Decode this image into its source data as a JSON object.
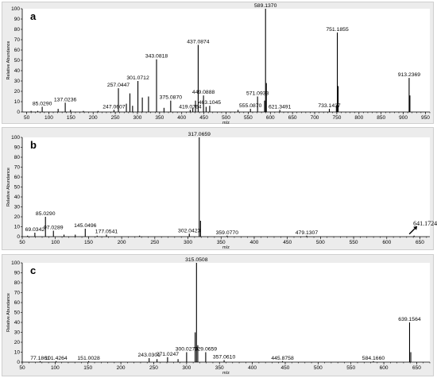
{
  "chart_data": [
    {
      "type": "bar",
      "panel_label": "a",
      "xlabel": "m/z",
      "ylabel": "Relative Abundance",
      "xlim": [
        40,
        960
      ],
      "ylim": [
        0,
        100
      ],
      "xticks": [
        50,
        100,
        150,
        200,
        250,
        300,
        350,
        400,
        450,
        500,
        550,
        600,
        650,
        700,
        750,
        800,
        850,
        900,
        950
      ],
      "yticks": [
        0,
        10,
        20,
        30,
        40,
        50,
        60,
        70,
        80,
        90,
        100
      ],
      "peaks": [
        {
          "x": 60,
          "y": 1,
          "label": ""
        },
        {
          "x": 75,
          "y": 1,
          "label": ""
        },
        {
          "x": 85.029,
          "y": 5,
          "label": "85.0290"
        },
        {
          "x": 121,
          "y": 3,
          "label": ""
        },
        {
          "x": 137.0236,
          "y": 9,
          "label": "137.0236"
        },
        {
          "x": 149,
          "y": 2,
          "label": ""
        },
        {
          "x": 178,
          "y": 1,
          "label": ""
        },
        {
          "x": 211,
          "y": 1,
          "label": ""
        },
        {
          "x": 247.0607,
          "y": 2,
          "label": "247.0607"
        },
        {
          "x": 257.0447,
          "y": 23,
          "label": "257.0447"
        },
        {
          "x": 275,
          "y": 8,
          "label": ""
        },
        {
          "x": 283,
          "y": 18,
          "label": ""
        },
        {
          "x": 289,
          "y": 6,
          "label": ""
        },
        {
          "x": 301.0712,
          "y": 30,
          "label": "301.0712"
        },
        {
          "x": 311,
          "y": 14,
          "label": ""
        },
        {
          "x": 325,
          "y": 15,
          "label": ""
        },
        {
          "x": 343.0818,
          "y": 51,
          "label": "343.0818"
        },
        {
          "x": 360,
          "y": 4,
          "label": ""
        },
        {
          "x": 375.087,
          "y": 11,
          "label": "375.0870"
        },
        {
          "x": 419.0764,
          "y": 2,
          "label": "419.0764"
        },
        {
          "x": 425,
          "y": 4,
          "label": ""
        },
        {
          "x": 431,
          "y": 11,
          "label": ""
        },
        {
          "x": 437.0874,
          "y": 65,
          "label": "437.0874"
        },
        {
          "x": 449.0888,
          "y": 16,
          "label": "449.0888"
        },
        {
          "x": 455,
          "y": 5,
          "label": ""
        },
        {
          "x": 463.1045,
          "y": 6,
          "label": "463.1045"
        },
        {
          "x": 527,
          "y": 2,
          "label": ""
        },
        {
          "x": 555.087,
          "y": 3,
          "label": "555.0870"
        },
        {
          "x": 571.0933,
          "y": 15,
          "label": "571.0933"
        },
        {
          "x": 587,
          "y": 11,
          "label": ""
        },
        {
          "x": 589.137,
          "y": 100,
          "label": "589.1370"
        },
        {
          "x": 591,
          "y": 28,
          "label": ""
        },
        {
          "x": 621.3491,
          "y": 2,
          "label": "621.3491"
        },
        {
          "x": 733.1437,
          "y": 3,
          "label": "733.1437"
        },
        {
          "x": 749,
          "y": 6,
          "label": ""
        },
        {
          "x": 751.1855,
          "y": 77,
          "label": "751.1855"
        },
        {
          "x": 753,
          "y": 25,
          "label": ""
        },
        {
          "x": 913.2369,
          "y": 33,
          "label": "913.2369"
        },
        {
          "x": 915,
          "y": 16,
          "label": ""
        }
      ]
    },
    {
      "type": "bar",
      "panel_label": "b",
      "xlabel": "m/z",
      "ylabel": "Relative Abundance",
      "xlim": [
        50,
        665
      ],
      "ylim": [
        0,
        100
      ],
      "xticks": [
        50,
        100,
        150,
        200,
        250,
        300,
        350,
        400,
        450,
        500,
        550,
        600,
        650
      ],
      "yticks": [
        0,
        10,
        20,
        30,
        40,
        50,
        60,
        70,
        80,
        90,
        100
      ],
      "callout": "641.1724",
      "peaks": [
        {
          "x": 58,
          "y": 1,
          "label": ""
        },
        {
          "x": 69.0342,
          "y": 4,
          "label": "69.0342"
        },
        {
          "x": 85.029,
          "y": 20,
          "label": "85.0290"
        },
        {
          "x": 97.0289,
          "y": 6,
          "label": "97.0289"
        },
        {
          "x": 113,
          "y": 2,
          "label": ""
        },
        {
          "x": 130,
          "y": 2,
          "label": ""
        },
        {
          "x": 145.0496,
          "y": 8,
          "label": "145.0496"
        },
        {
          "x": 163,
          "y": 1,
          "label": ""
        },
        {
          "x": 177.0541,
          "y": 2,
          "label": "177.0541"
        },
        {
          "x": 227,
          "y": 1,
          "label": ""
        },
        {
          "x": 302.0423,
          "y": 3,
          "label": "302.0423"
        },
        {
          "x": 317.0659,
          "y": 100,
          "label": "317.0659"
        },
        {
          "x": 319,
          "y": 16,
          "label": ""
        },
        {
          "x": 359.077,
          "y": 1,
          "label": "359.0770"
        },
        {
          "x": 479.1307,
          "y": 1,
          "label": "479.1307"
        },
        {
          "x": 641.1724,
          "y": 1,
          "label": ""
        }
      ]
    },
    {
      "type": "bar",
      "panel_label": "c",
      "xlabel": "m/z",
      "ylabel": "Relative Abundance",
      "xlim": [
        50,
        670
      ],
      "ylim": [
        0,
        100
      ],
      "xticks": [
        50,
        100,
        150,
        200,
        250,
        300,
        350,
        400,
        450,
        500,
        550,
        600,
        650
      ],
      "yticks": [
        0,
        10,
        20,
        30,
        40,
        50,
        60,
        70,
        80,
        90,
        100
      ],
      "peaks": [
        {
          "x": 77.1861,
          "y": 1,
          "label": "77.1861"
        },
        {
          "x": 101.4264,
          "y": 1,
          "label": "101.4264"
        },
        {
          "x": 151.0028,
          "y": 1,
          "label": "151.0028"
        },
        {
          "x": 243.0301,
          "y": 4,
          "label": "243.0301"
        },
        {
          "x": 255,
          "y": 3,
          "label": ""
        },
        {
          "x": 271.0247,
          "y": 5,
          "label": "271.0247"
        },
        {
          "x": 287,
          "y": 3,
          "label": ""
        },
        {
          "x": 300.027,
          "y": 10,
          "label": "300.0270"
        },
        {
          "x": 313,
          "y": 30,
          "label": ""
        },
        {
          "x": 315.0508,
          "y": 100,
          "label": "315.0508"
        },
        {
          "x": 317,
          "y": 17,
          "label": ""
        },
        {
          "x": 329.0659,
          "y": 10,
          "label": "329.0659"
        },
        {
          "x": 357.061,
          "y": 2,
          "label": "357.0610"
        },
        {
          "x": 445.8758,
          "y": 1,
          "label": "445.8758"
        },
        {
          "x": 584.166,
          "y": 1,
          "label": "584.1660"
        },
        {
          "x": 639.1564,
          "y": 40,
          "label": "639.1564"
        },
        {
          "x": 641,
          "y": 10,
          "label": ""
        }
      ]
    }
  ]
}
